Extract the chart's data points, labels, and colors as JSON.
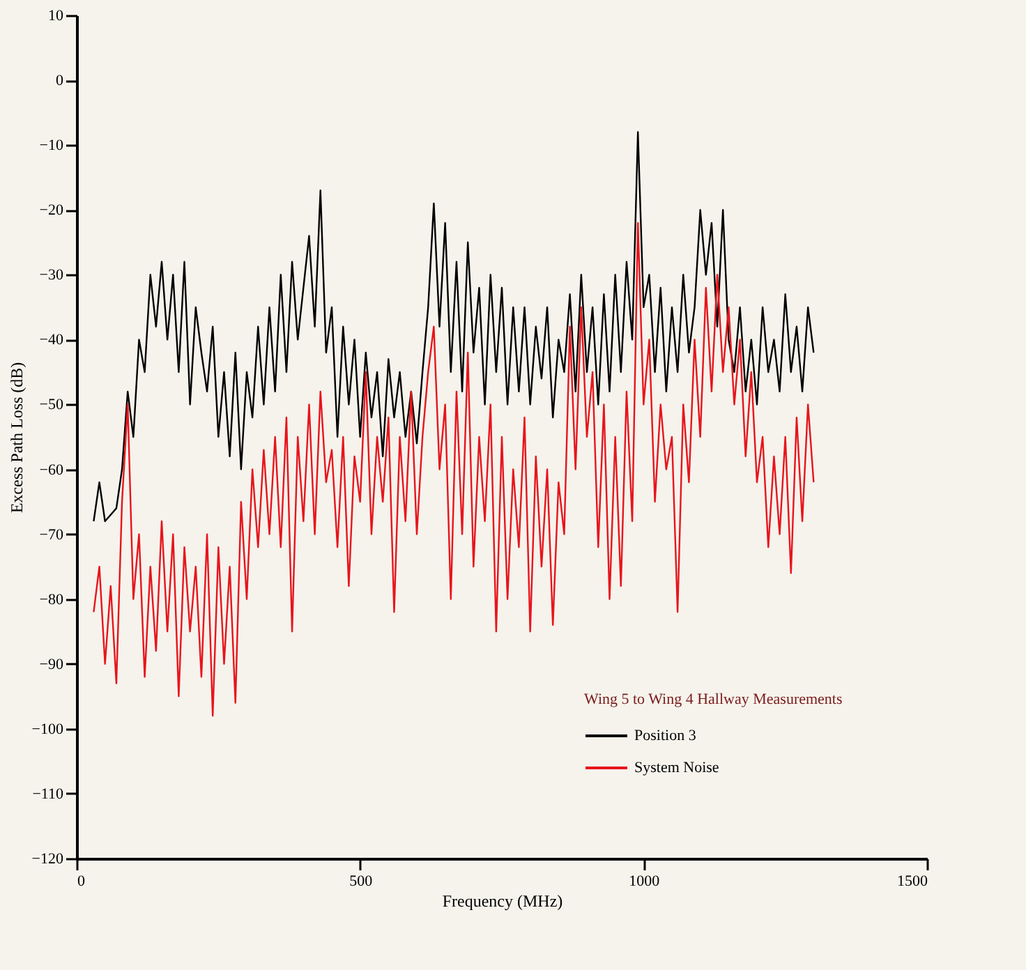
{
  "chart_data": {
    "type": "line",
    "xlabel": "Frequency (MHz)",
    "ylabel": "Excess Path Loss (dB)",
    "legend_title": "Wing 5 to Wing 4 Hallway Measurements",
    "xlim": [
      0,
      1500
    ],
    "xticks": [
      0,
      500,
      1000,
      1500
    ],
    "ylim": [
      -120,
      10
    ],
    "yticks": [
      10,
      0,
      -10,
      -20,
      -30,
      -40,
      -50,
      -60,
      -70,
      -80,
      -90,
      -100,
      -110,
      -120
    ],
    "grid": false,
    "legend": "bottom right",
    "marker": "none",
    "line_style": "solid",
    "x": [
      30,
      40,
      50,
      60,
      70,
      80,
      90,
      100,
      110,
      120,
      130,
      140,
      150,
      160,
      170,
      180,
      190,
      200,
      210,
      220,
      230,
      240,
      250,
      260,
      270,
      280,
      290,
      300,
      310,
      320,
      330,
      340,
      350,
      360,
      370,
      380,
      390,
      400,
      410,
      420,
      430,
      440,
      450,
      460,
      470,
      480,
      490,
      500,
      510,
      520,
      530,
      540,
      550,
      560,
      570,
      580,
      590,
      600,
      610,
      620,
      630,
      640,
      650,
      660,
      670,
      680,
      690,
      700,
      710,
      720,
      730,
      740,
      750,
      760,
      770,
      780,
      790,
      800,
      810,
      820,
      830,
      840,
      850,
      860,
      870,
      880,
      890,
      900,
      910,
      920,
      930,
      940,
      950,
      960,
      970,
      980,
      990,
      1000,
      1010,
      1020,
      1030,
      1040,
      1050,
      1060,
      1070,
      1080,
      1090,
      1100,
      1110,
      1120,
      1130,
      1140,
      1150,
      1160,
      1170,
      1180,
      1190,
      1200,
      1210,
      1220,
      1230,
      1240,
      1250,
      1260,
      1270,
      1280,
      1290,
      1300
    ],
    "series": [
      {
        "name": "Position 3",
        "color": "#000000",
        "values": [
          -68,
          -62,
          -68,
          -67,
          -66,
          -60,
          -48,
          -55,
          -40,
          -45,
          -30,
          -38,
          -28,
          -40,
          -30,
          -45,
          -28,
          -50,
          -35,
          -42,
          -48,
          -38,
          -55,
          -45,
          -58,
          -42,
          -60,
          -45,
          -52,
          -38,
          -50,
          -35,
          -48,
          -30,
          -45,
          -28,
          -40,
          -32,
          -24,
          -38,
          -17,
          -42,
          -35,
          -55,
          -38,
          -50,
          -40,
          -55,
          -42,
          -52,
          -45,
          -58,
          -43,
          -52,
          -45,
          -55,
          -48,
          -56,
          -45,
          -35,
          -19,
          -38,
          -22,
          -45,
          -28,
          -48,
          -25,
          -42,
          -32,
          -50,
          -30,
          -45,
          -32,
          -50,
          -35,
          -48,
          -35,
          -50,
          -38,
          -46,
          -35,
          -52,
          -40,
          -45,
          -33,
          -48,
          -30,
          -45,
          -35,
          -50,
          -33,
          -48,
          -30,
          -45,
          -28,
          -40,
          -8,
          -35,
          -30,
          -45,
          -32,
          -48,
          -35,
          -45,
          -30,
          -42,
          -35,
          -20,
          -30,
          -22,
          -38,
          -20,
          -40,
          -45,
          -35,
          -48,
          -40,
          -50,
          -35,
          -45,
          -40,
          -48,
          -33,
          -45,
          -38,
          -48,
          -35,
          -42
        ]
      },
      {
        "name": "System Noise",
        "color": "#e8141c",
        "values": [
          -82,
          -75,
          -90,
          -78,
          -93,
          -65,
          -50,
          -80,
          -70,
          -92,
          -75,
          -88,
          -68,
          -85,
          -70,
          -95,
          -72,
          -85,
          -75,
          -92,
          -70,
          -98,
          -72,
          -90,
          -75,
          -96,
          -65,
          -80,
          -60,
          -72,
          -57,
          -70,
          -55,
          -72,
          -52,
          -85,
          -55,
          -68,
          -50,
          -70,
          -48,
          -62,
          -57,
          -72,
          -55,
          -78,
          -58,
          -65,
          -45,
          -70,
          -55,
          -65,
          -52,
          -82,
          -55,
          -68,
          -48,
          -70,
          -55,
          -45,
          -38,
          -60,
          -50,
          -80,
          -48,
          -70,
          -42,
          -75,
          -55,
          -68,
          -50,
          -85,
          -55,
          -80,
          -60,
          -72,
          -52,
          -85,
          -58,
          -75,
          -60,
          -84,
          -62,
          -70,
          -38,
          -60,
          -35,
          -55,
          -45,
          -72,
          -50,
          -80,
          -55,
          -78,
          -48,
          -68,
          -22,
          -50,
          -40,
          -65,
          -50,
          -60,
          -55,
          -82,
          -50,
          -62,
          -40,
          -55,
          -32,
          -48,
          -30,
          -45,
          -35,
          -50,
          -40,
          -58,
          -45,
          -62,
          -55,
          -72,
          -58,
          -70,
          -55,
          -76,
          -52,
          -68,
          -50,
          -62
        ]
      }
    ]
  }
}
